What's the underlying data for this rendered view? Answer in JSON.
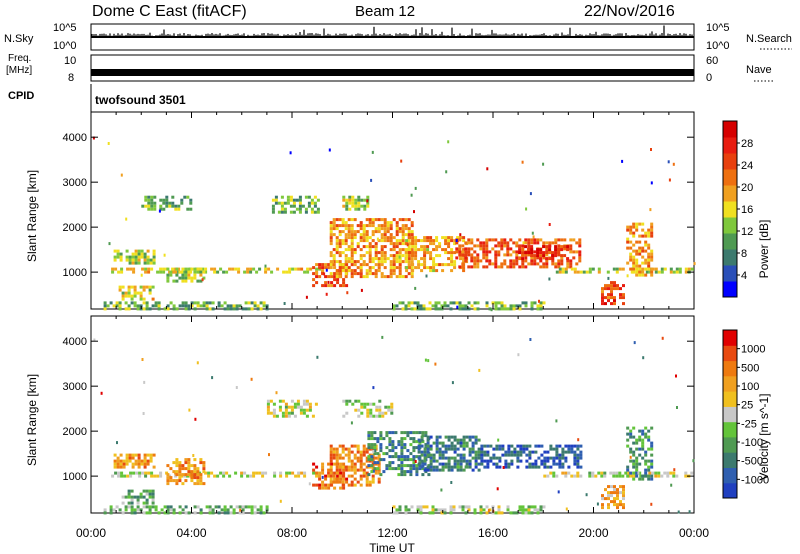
{
  "header": {
    "station": "Dome C East (fitACF)",
    "beam": "Beam 12",
    "date": "22/Nov/2016"
  },
  "top_panels": {
    "nsky_label": "N.Sky",
    "nsky_ticks": [
      "10^5",
      "10^0"
    ],
    "nsearch_label": "N.Search",
    "nsearch_ticks": [
      "10^5",
      "10^0"
    ],
    "freq_label_1": "Freq.",
    "freq_label_2": "[MHz]",
    "freq_ticks": [
      "10",
      "8"
    ],
    "nave_label": "Nave",
    "nave_ticks": [
      "60",
      "0"
    ],
    "cpid_label": "CPID",
    "cpid_value": "twofsound 3501"
  },
  "chart_data": [
    {
      "type": "heatmap",
      "title": "",
      "quantity": "Power",
      "ylabel": "Slant Range [km]",
      "xlabel": "",
      "x_range_hours": [
        0,
        24
      ],
      "ylim": [
        180,
        4560
      ],
      "y_ticks": [
        1000,
        2000,
        3000,
        4000
      ],
      "colorbar_label": "Power [dB]",
      "colorbar_ticks": [
        "4",
        "8",
        "12",
        "16",
        "20",
        "24",
        "28"
      ],
      "colorbar_colors": [
        "#0000ff",
        "#2a4fb8",
        "#3c7a6e",
        "#4f9a52",
        "#7fc83c",
        "#f0e020",
        "#f0a020",
        "#ee7010",
        "#e8400e",
        "#e81c10",
        "#d60000"
      ],
      "regions": [
        {
          "t": [
            0.8,
            9.2
          ],
          "r": [
            1000,
            1100
          ],
          "level": 0.5
        },
        {
          "t": [
            0.9,
            2.5
          ],
          "r": [
            1200,
            1500
          ],
          "level": 0.45
        },
        {
          "t": [
            1.1,
            2.5
          ],
          "r": [
            400,
            700
          ],
          "level": 0.5
        },
        {
          "t": [
            0.5,
            7.0
          ],
          "r": [
            200,
            350
          ],
          "level": 0.35
        },
        {
          "t": [
            3.0,
            4.5
          ],
          "r": [
            800,
            1100
          ],
          "level": 0.45
        },
        {
          "t": [
            2.0,
            4.0
          ],
          "r": [
            2400,
            2700
          ],
          "level": 0.35
        },
        {
          "t": [
            7.2,
            9.0
          ],
          "r": [
            2300,
            2700
          ],
          "level": 0.35
        },
        {
          "t": [
            8.8,
            10.2
          ],
          "r": [
            700,
            1200
          ],
          "level": 0.72
        },
        {
          "t": [
            9.5,
            12.8
          ],
          "r": [
            900,
            2200
          ],
          "level": 0.62
        },
        {
          "t": [
            10.0,
            11.0
          ],
          "r": [
            2400,
            2700
          ],
          "level": 0.45
        },
        {
          "t": [
            12.5,
            15.0
          ],
          "r": [
            1000,
            1800
          ],
          "level": 0.6
        },
        {
          "t": [
            14.5,
            19.5
          ],
          "r": [
            1100,
            1750
          ],
          "level": 0.74
        },
        {
          "t": [
            17.0,
            19.0
          ],
          "r": [
            1300,
            1600
          ],
          "level": 0.85
        },
        {
          "t": [
            18.5,
            23.9
          ],
          "r": [
            1000,
            1100
          ],
          "level": 0.45
        },
        {
          "t": [
            20.3,
            21.2
          ],
          "r": [
            300,
            800
          ],
          "level": 0.78
        },
        {
          "t": [
            21.3,
            22.3
          ],
          "r": [
            900,
            2100
          ],
          "level": 0.62
        },
        {
          "t": [
            12.0,
            18.0
          ],
          "r": [
            200,
            350
          ],
          "level": 0.35
        }
      ]
    },
    {
      "type": "heatmap",
      "title": "",
      "quantity": "Velocity",
      "ylabel": "Slant Range [km]",
      "xlabel": "Time UT",
      "x_range_hours": [
        0,
        24
      ],
      "x_tick_labels": [
        "00:00",
        "04:00",
        "08:00",
        "12:00",
        "16:00",
        "20:00",
        "00:00"
      ],
      "ylim": [
        180,
        4560
      ],
      "y_ticks": [
        1000,
        2000,
        3000,
        4000
      ],
      "colorbar_label": "Velocity [m s^-1]",
      "colorbar_ticks": [
        "1000",
        "500",
        "100",
        "25",
        "-25",
        "-100",
        "-500",
        "-1000"
      ],
      "colorbar_colors": [
        "#2040c0",
        "#2f5fb0",
        "#3c7a6e",
        "#4f9a52",
        "#63c43a",
        "#c8c8c8",
        "#f0c020",
        "#f0a020",
        "#ee7a10",
        "#e84a10",
        "#e00000"
      ],
      "regions": [
        {
          "t": [
            0.8,
            9.2
          ],
          "r": [
            1000,
            1100
          ],
          "level": 0.5
        },
        {
          "t": [
            0.9,
            2.5
          ],
          "r": [
            1200,
            1500
          ],
          "level": 0.7
        },
        {
          "t": [
            1.1,
            2.5
          ],
          "r": [
            400,
            700
          ],
          "level": 0.35
        },
        {
          "t": [
            0.5,
            7.0
          ],
          "r": [
            200,
            350
          ],
          "level": 0.4
        },
        {
          "t": [
            3.0,
            4.5
          ],
          "r": [
            800,
            1400
          ],
          "level": 0.7
        },
        {
          "t": [
            7.0,
            9.0
          ],
          "r": [
            2300,
            2700
          ],
          "level": 0.5
        },
        {
          "t": [
            8.8,
            10.2
          ],
          "r": [
            700,
            1300
          ],
          "level": 0.8
        },
        {
          "t": [
            9.5,
            11.5
          ],
          "r": [
            800,
            1700
          ],
          "level": 0.75
        },
        {
          "t": [
            10.0,
            12.0
          ],
          "r": [
            2300,
            2700
          ],
          "level": 0.5
        },
        {
          "t": [
            11.0,
            13.5
          ],
          "r": [
            1000,
            2000
          ],
          "level": 0.25
        },
        {
          "t": [
            13.0,
            15.5
          ],
          "r": [
            1100,
            1900
          ],
          "level": 0.22
        },
        {
          "t": [
            15.5,
            19.5
          ],
          "r": [
            1200,
            1700
          ],
          "level": 0.12
        },
        {
          "t": [
            18.0,
            23.9
          ],
          "r": [
            1000,
            1100
          ],
          "level": 0.5
        },
        {
          "t": [
            20.3,
            21.2
          ],
          "r": [
            300,
            800
          ],
          "level": 0.65
        },
        {
          "t": [
            21.3,
            22.3
          ],
          "r": [
            900,
            2100
          ],
          "level": 0.3
        },
        {
          "t": [
            12.0,
            18.0
          ],
          "r": [
            200,
            350
          ],
          "level": 0.45
        }
      ]
    }
  ]
}
